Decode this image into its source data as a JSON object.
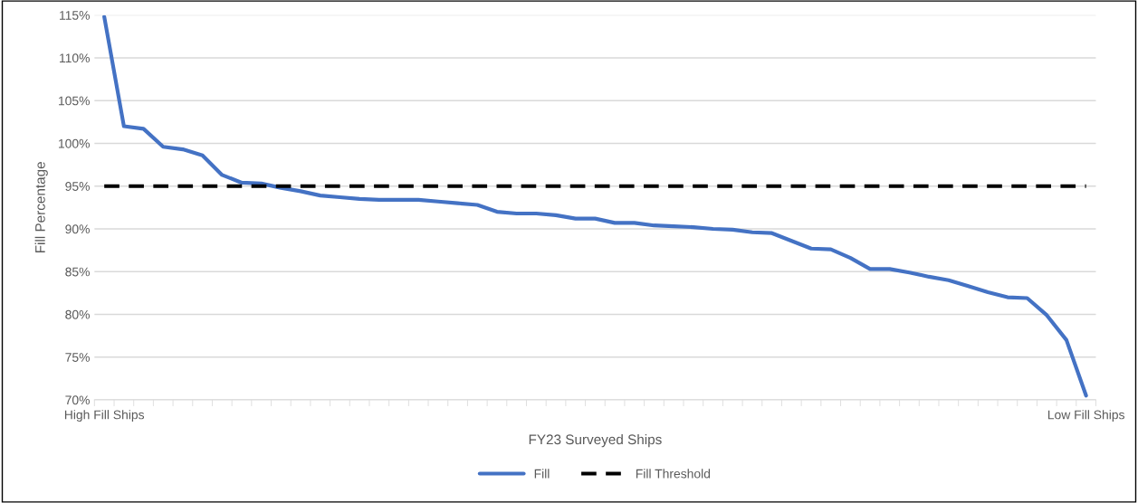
{
  "chart_data": {
    "type": "line",
    "xlabel": "FY23 Surveyed Ships",
    "ylabel": "Fill Percentage",
    "categories": [
      "High Fill Ships",
      null,
      null,
      null,
      null,
      null,
      null,
      null,
      null,
      null,
      null,
      null,
      null,
      null,
      null,
      null,
      null,
      null,
      null,
      null,
      null,
      null,
      null,
      null,
      null,
      null,
      null,
      null,
      null,
      null,
      null,
      null,
      null,
      null,
      null,
      null,
      null,
      null,
      null,
      null,
      null,
      null,
      null,
      null,
      null,
      null,
      null,
      null,
      null,
      null,
      "Low Fill Ships"
    ],
    "series": [
      {
        "name": "Fill",
        "color": "#4472c4",
        "line_style": "solid",
        "values": [
          114.8,
          102.0,
          101.7,
          99.6,
          99.3,
          98.6,
          96.3,
          95.4,
          95.3,
          94.8,
          94.4,
          93.9,
          93.7,
          93.5,
          93.4,
          93.4,
          93.4,
          93.2,
          93.0,
          92.8,
          92.0,
          91.8,
          91.8,
          91.6,
          91.2,
          91.2,
          90.7,
          90.7,
          90.4,
          90.3,
          90.2,
          90.0,
          89.9,
          89.6,
          89.5,
          88.6,
          87.7,
          87.6,
          86.6,
          85.3,
          85.3,
          84.9,
          84.4,
          84.0,
          83.3,
          82.6,
          82.0,
          81.9,
          79.9,
          77.0,
          70.5
        ]
      },
      {
        "name": "Fill Threshold",
        "color": "#000000",
        "line_style": "dashed",
        "values": [
          95,
          95,
          95,
          95,
          95,
          95,
          95,
          95,
          95,
          95,
          95,
          95,
          95,
          95,
          95,
          95,
          95,
          95,
          95,
          95,
          95,
          95,
          95,
          95,
          95,
          95,
          95,
          95,
          95,
          95,
          95,
          95,
          95,
          95,
          95,
          95,
          95,
          95,
          95,
          95,
          95,
          95,
          95,
          95,
          95,
          95,
          95,
          95,
          95,
          95,
          95
        ]
      }
    ],
    "ylim": [
      70,
      115
    ],
    "yticks": [
      {
        "value": 70,
        "label": "70%"
      },
      {
        "value": 75,
        "label": "75%"
      },
      {
        "value": 80,
        "label": "80%"
      },
      {
        "value": 85,
        "label": "85%"
      },
      {
        "value": 90,
        "label": "90%"
      },
      {
        "value": 95,
        "label": "95%"
      },
      {
        "value": 100,
        "label": "100%"
      },
      {
        "value": 105,
        "label": "105%"
      },
      {
        "value": 110,
        "label": "110%"
      },
      {
        "value": 115,
        "label": "115%"
      }
    ],
    "grid": "y",
    "legend": "bottom",
    "marker": "none"
  }
}
